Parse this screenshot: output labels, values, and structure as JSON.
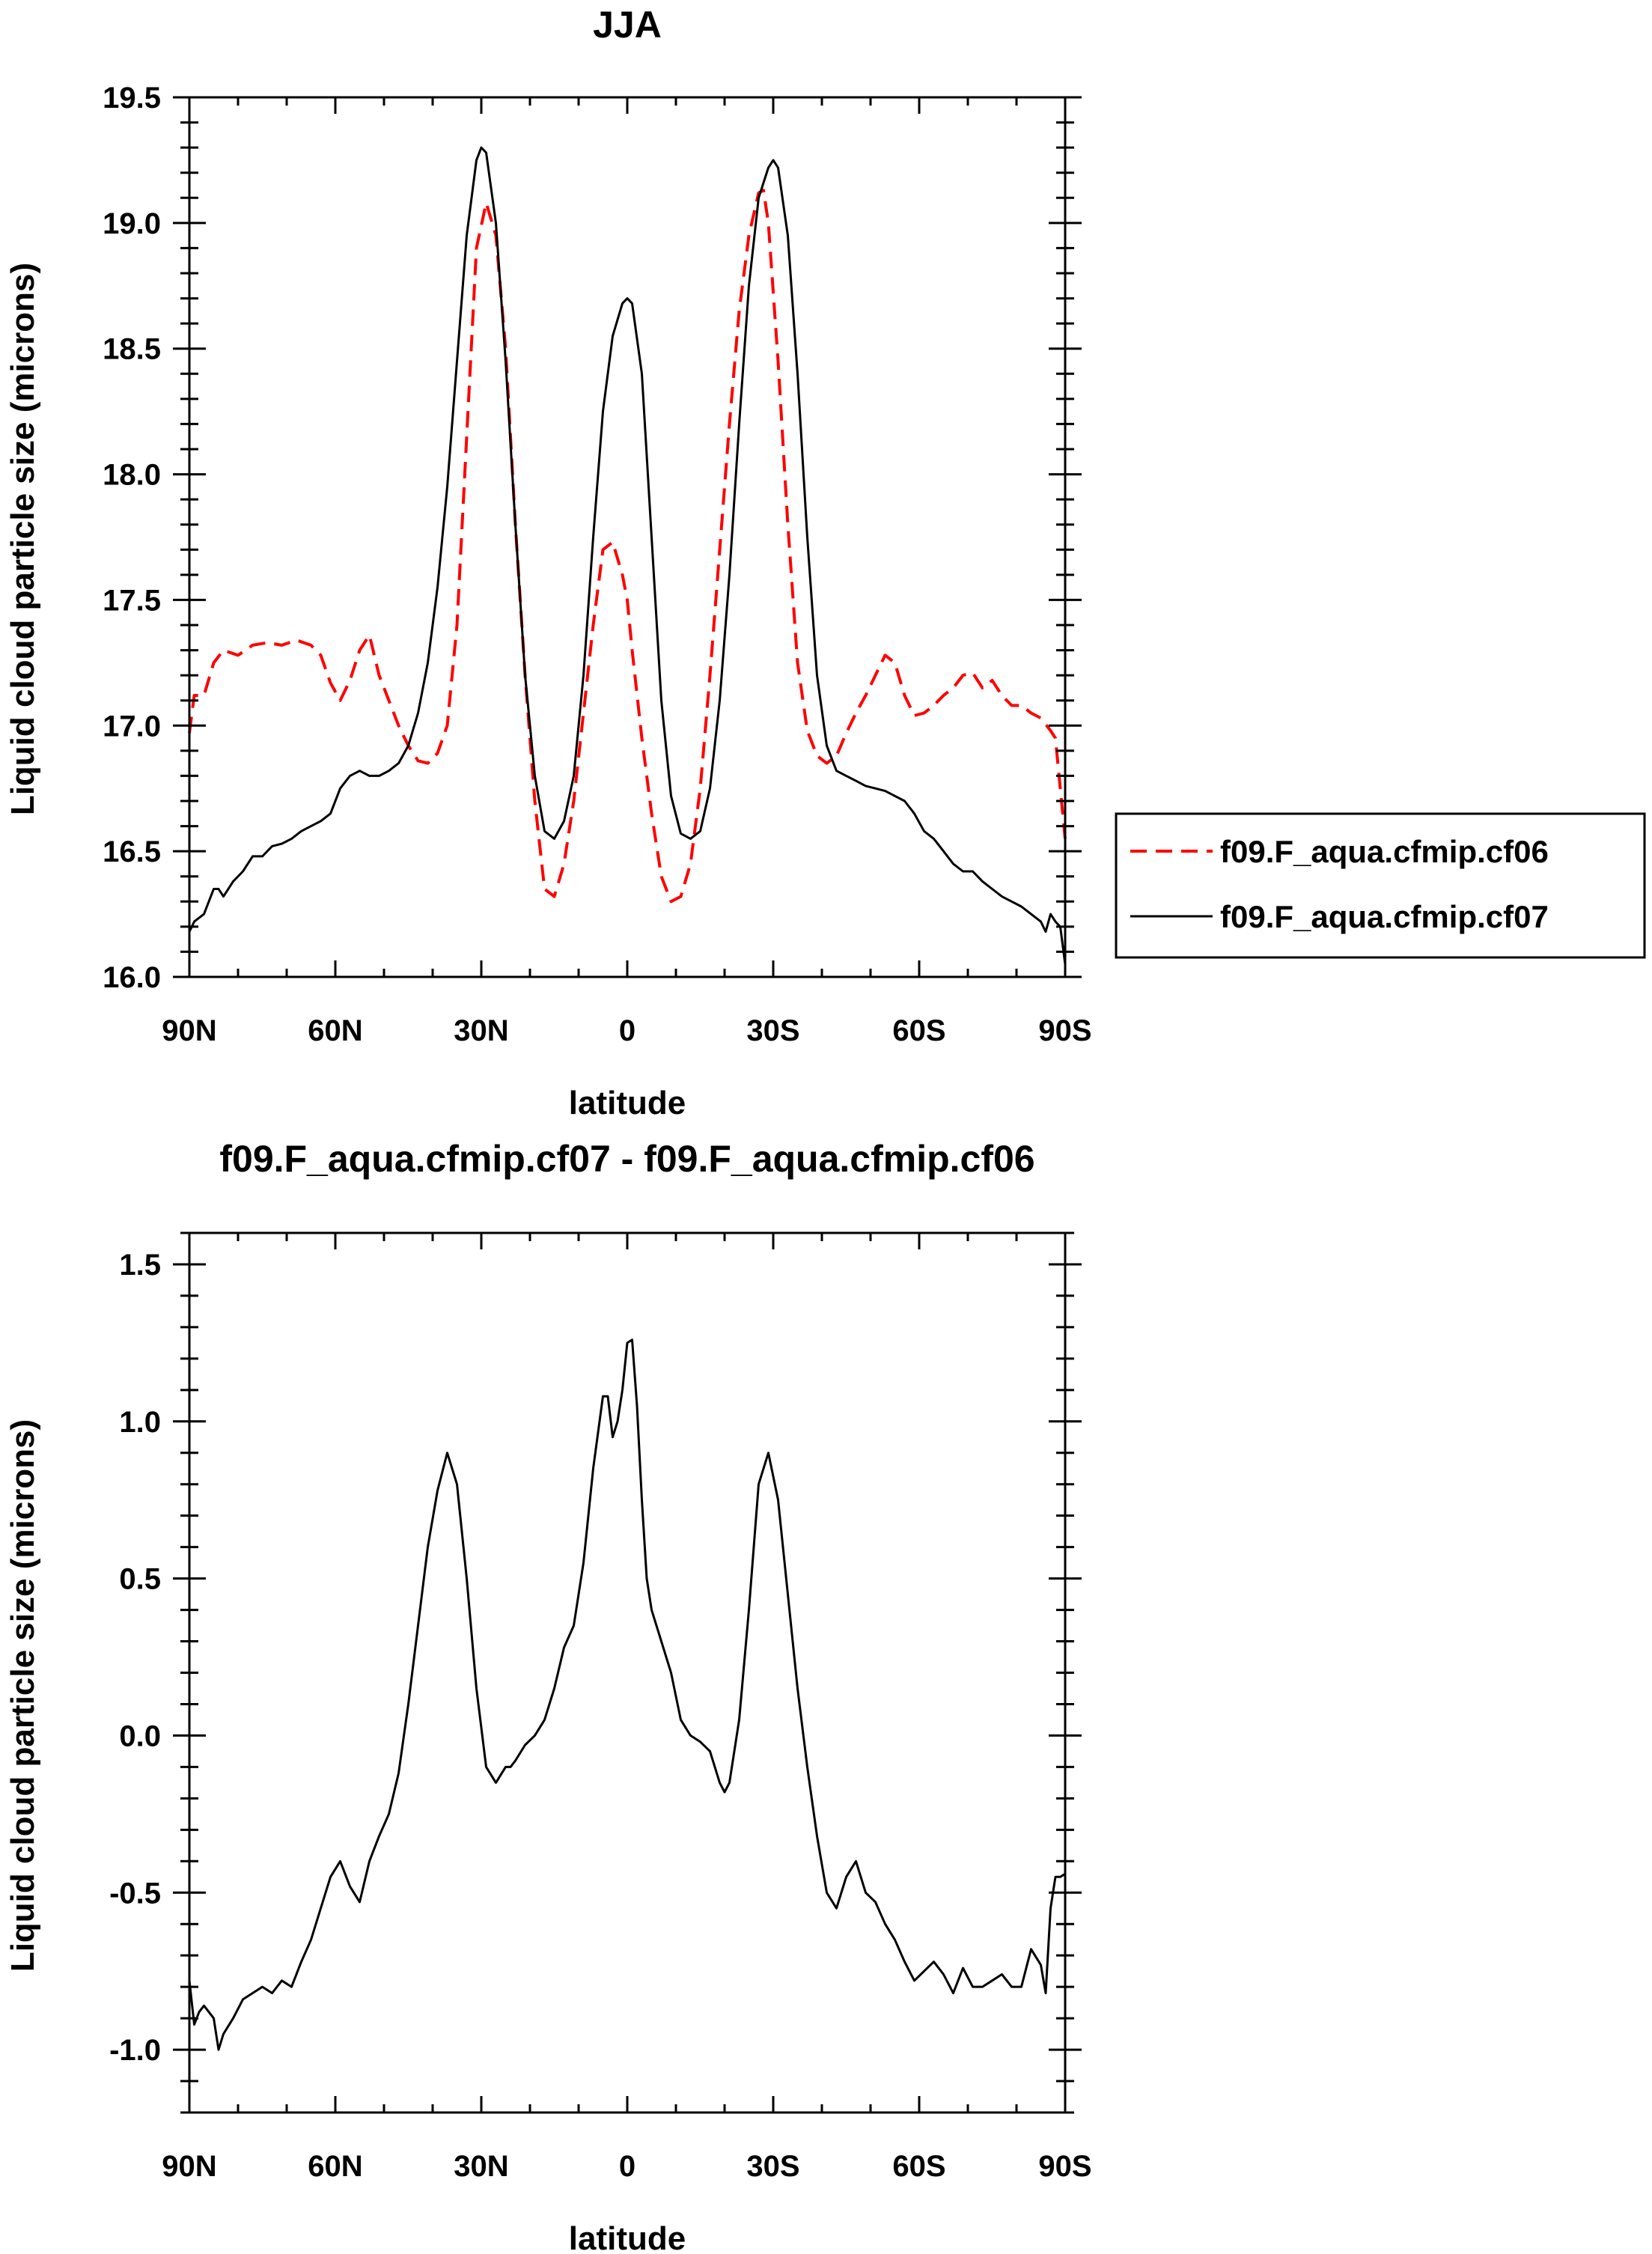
{
  "chart_data": [
    {
      "type": "line",
      "title": "JJA",
      "xlabel": "latitude",
      "ylabel": "Liquid cloud particle size (microns)",
      "xlim": [
        90,
        -90
      ],
      "ylim": [
        16.0,
        19.5
      ],
      "xticks": [
        {
          "value": 90,
          "label": "90N"
        },
        {
          "value": 60,
          "label": "60N"
        },
        {
          "value": 30,
          "label": "30N"
        },
        {
          "value": 0,
          "label": "0"
        },
        {
          "value": -30,
          "label": "30S"
        },
        {
          "value": -60,
          "label": "60S"
        },
        {
          "value": -90,
          "label": "90S"
        }
      ],
      "yticks": [
        {
          "value": 16.0,
          "label": "16.0"
        },
        {
          "value": 16.5,
          "label": "16.5"
        },
        {
          "value": 17.0,
          "label": "17.0"
        },
        {
          "value": 17.5,
          "label": "17.5"
        },
        {
          "value": 18.0,
          "label": "18.0"
        },
        {
          "value": 18.5,
          "label": "18.5"
        },
        {
          "value": 19.0,
          "label": "19.0"
        },
        {
          "value": 19.5,
          "label": "19.5"
        }
      ],
      "legend_position": "right",
      "series": [
        {
          "name": "f09.F_aqua.cfmip.cf06",
          "color": "#ff0000",
          "dash": "dashed",
          "x": [
            90,
            89,
            87,
            85,
            83,
            80,
            77,
            74,
            71,
            68,
            65,
            63,
            61,
            59,
            57,
            55,
            53,
            51,
            49,
            47,
            45,
            43,
            41,
            39,
            37,
            35,
            33,
            31,
            29,
            27,
            25,
            23,
            21,
            19,
            17,
            15,
            13,
            11,
            9,
            7,
            5,
            3,
            1,
            0,
            -1,
            -3,
            -5,
            -7,
            -9,
            -11,
            -13,
            -15,
            -17,
            -19,
            -21,
            -23,
            -25,
            -27,
            -28,
            -29,
            -31,
            -33,
            -35,
            -37,
            -39,
            -41,
            -43,
            -45,
            -47,
            -49,
            -51,
            -53,
            -55,
            -57,
            -59,
            -61,
            -63,
            -65,
            -67,
            -69,
            -71,
            -73,
            -75,
            -77,
            -79,
            -81,
            -83,
            -85,
            -87,
            -88,
            -89,
            -90
          ],
          "y": [
            16.97,
            17.12,
            17.12,
            17.25,
            17.3,
            17.28,
            17.32,
            17.33,
            17.32,
            17.34,
            17.32,
            17.28,
            17.17,
            17.1,
            17.18,
            17.3,
            17.36,
            17.2,
            17.1,
            17.0,
            16.92,
            16.86,
            16.85,
            16.89,
            17.0,
            17.4,
            18.15,
            18.9,
            19.08,
            18.95,
            18.5,
            17.8,
            17.2,
            16.7,
            16.35,
            16.32,
            16.45,
            16.7,
            17.05,
            17.4,
            17.7,
            17.73,
            17.6,
            17.5,
            17.3,
            16.95,
            16.65,
            16.4,
            16.3,
            16.32,
            16.45,
            16.75,
            17.2,
            17.7,
            18.2,
            18.65,
            18.95,
            19.12,
            19.13,
            19.0,
            18.45,
            17.8,
            17.25,
            16.98,
            16.88,
            16.85,
            16.88,
            16.97,
            17.05,
            17.12,
            17.2,
            17.28,
            17.25,
            17.12,
            17.04,
            17.05,
            17.08,
            17.12,
            17.15,
            17.2,
            17.21,
            17.15,
            17.18,
            17.12,
            17.08,
            17.08,
            17.05,
            17.03,
            16.98,
            16.95,
            16.75,
            16.55
          ]
        },
        {
          "name": "f09.F_aqua.cfmip.cf07",
          "color": "#000000",
          "dash": "solid",
          "x": [
            90,
            89,
            87,
            85,
            84,
            83,
            81,
            79,
            77,
            75,
            73,
            71,
            69,
            67,
            65,
            63,
            61,
            59,
            57,
            55,
            53,
            51,
            49,
            47,
            45,
            43,
            41,
            39,
            37,
            35,
            33,
            31,
            30,
            29,
            27,
            25,
            23,
            21,
            19,
            17,
            15,
            13,
            11,
            9,
            7,
            5,
            3,
            1,
            0,
            -1,
            -3,
            -5,
            -7,
            -9,
            -11,
            -13,
            -15,
            -17,
            -19,
            -21,
            -23,
            -25,
            -27,
            -29,
            -30,
            -31,
            -33,
            -35,
            -37,
            -39,
            -41,
            -43,
            -45,
            -47,
            -49,
            -51,
            -53,
            -55,
            -57,
            -59,
            -61,
            -63,
            -65,
            -67,
            -69,
            -71,
            -73,
            -75,
            -77,
            -79,
            -81,
            -83,
            -85,
            -86,
            -87,
            -88,
            -89,
            -90
          ],
          "y": [
            16.18,
            16.22,
            16.25,
            16.35,
            16.35,
            16.32,
            16.38,
            16.42,
            16.48,
            16.48,
            16.52,
            16.53,
            16.55,
            16.58,
            16.6,
            16.62,
            16.65,
            16.75,
            16.8,
            16.82,
            16.8,
            16.8,
            16.82,
            16.85,
            16.92,
            17.05,
            17.25,
            17.55,
            17.95,
            18.45,
            18.95,
            19.25,
            19.3,
            19.28,
            19.0,
            18.45,
            17.8,
            17.2,
            16.8,
            16.58,
            16.55,
            16.62,
            16.8,
            17.2,
            17.75,
            18.25,
            18.55,
            18.68,
            18.7,
            18.68,
            18.4,
            17.75,
            17.1,
            16.72,
            16.57,
            16.55,
            16.58,
            16.75,
            17.1,
            17.6,
            18.2,
            18.75,
            19.1,
            19.22,
            19.25,
            19.22,
            18.95,
            18.4,
            17.75,
            17.2,
            16.92,
            16.82,
            16.8,
            16.78,
            16.76,
            16.75,
            16.74,
            16.72,
            16.7,
            16.65,
            16.58,
            16.55,
            16.5,
            16.45,
            16.42,
            16.42,
            16.38,
            16.35,
            16.32,
            16.3,
            16.28,
            16.25,
            16.22,
            16.18,
            16.25,
            16.22,
            16.2,
            16.05
          ]
        }
      ]
    },
    {
      "type": "line",
      "title": "f09.F_aqua.cfmip.cf07 - f09.F_aqua.cfmip.cf06",
      "xlabel": "latitude",
      "ylabel": "Liquid cloud particle size (microns)",
      "xlim": [
        90,
        -90
      ],
      "ylim": [
        -1.2,
        1.6
      ],
      "xticks": [
        {
          "value": 90,
          "label": "90N"
        },
        {
          "value": 60,
          "label": "60N"
        },
        {
          "value": 30,
          "label": "30N"
        },
        {
          "value": 0,
          "label": "0"
        },
        {
          "value": -30,
          "label": "30S"
        },
        {
          "value": -60,
          "label": "60S"
        },
        {
          "value": -90,
          "label": "90S"
        }
      ],
      "yticks": [
        {
          "value": -1.0,
          "label": "-1.0"
        },
        {
          "value": -0.5,
          "label": "-0.5"
        },
        {
          "value": 0.0,
          "label": "0.0"
        },
        {
          "value": 0.5,
          "label": "0.5"
        },
        {
          "value": 1.0,
          "label": "1.0"
        },
        {
          "value": 1.5,
          "label": "1.5"
        }
      ],
      "series": [
        {
          "name": "",
          "color": "#000000",
          "dash": "solid",
          "x": [
            90,
            89,
            88,
            87,
            85,
            84,
            83,
            81,
            79,
            77,
            75,
            73,
            71,
            69,
            67,
            65,
            63,
            61,
            59,
            57,
            55,
            53,
            51,
            49,
            47,
            45,
            43,
            41,
            39,
            37,
            35,
            33,
            31,
            29,
            27,
            25,
            24,
            23,
            21,
            19,
            17,
            15,
            13,
            11,
            9,
            7,
            5,
            4,
            3,
            2,
            1,
            0,
            -1,
            -2,
            -3,
            -4,
            -5,
            -7,
            -9,
            -11,
            -13,
            -15,
            -17,
            -19,
            -20,
            -21,
            -23,
            -25,
            -27,
            -29,
            -31,
            -33,
            -35,
            -37,
            -39,
            -41,
            -43,
            -45,
            -47,
            -49,
            -51,
            -53,
            -55,
            -57,
            -59,
            -61,
            -63,
            -65,
            -67,
            -69,
            -71,
            -73,
            -75,
            -77,
            -79,
            -81,
            -83,
            -85,
            -86,
            -87,
            -88,
            -89,
            -90
          ],
          "y": [
            -0.78,
            -0.92,
            -0.88,
            -0.86,
            -0.9,
            -1.0,
            -0.95,
            -0.9,
            -0.84,
            -0.82,
            -0.8,
            -0.82,
            -0.78,
            -0.8,
            -0.72,
            -0.65,
            -0.55,
            -0.45,
            -0.4,
            -0.48,
            -0.53,
            -0.4,
            -0.32,
            -0.25,
            -0.12,
            0.1,
            0.35,
            0.6,
            0.78,
            0.9,
            0.8,
            0.5,
            0.15,
            -0.1,
            -0.15,
            -0.1,
            -0.1,
            -0.08,
            -0.03,
            0.0,
            0.05,
            0.15,
            0.28,
            0.35,
            0.55,
            0.85,
            1.08,
            1.08,
            0.95,
            1.0,
            1.1,
            1.25,
            1.26,
            1.05,
            0.75,
            0.5,
            0.4,
            0.3,
            0.2,
            0.05,
            0.0,
            -0.02,
            -0.05,
            -0.15,
            -0.18,
            -0.15,
            0.05,
            0.4,
            0.8,
            0.9,
            0.75,
            0.45,
            0.15,
            -0.1,
            -0.32,
            -0.5,
            -0.55,
            -0.45,
            -0.4,
            -0.5,
            -0.53,
            -0.6,
            -0.65,
            -0.72,
            -0.78,
            -0.75,
            -0.72,
            -0.76,
            -0.82,
            -0.74,
            -0.8,
            -0.8,
            -0.78,
            -0.76,
            -0.8,
            -0.8,
            -0.68,
            -0.73,
            -0.82,
            -0.55,
            -0.45,
            -0.45,
            -0.44
          ]
        }
      ]
    }
  ]
}
